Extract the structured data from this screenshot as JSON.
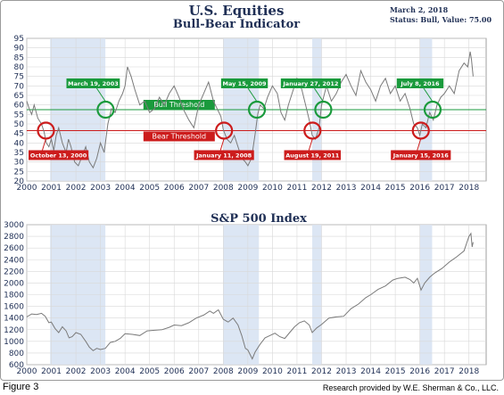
{
  "header": {
    "title": "U.S. Equities",
    "subtitle": "Bull-Bear Indicator",
    "date": "March 2, 2018",
    "status": "Status: Bull, Value: 75.00"
  },
  "footer": {
    "figure": "Figure 3",
    "credit": "Research provided by W.E. Sherman & Co., LLC."
  },
  "colors": {
    "bull": "#1a9a3c",
    "bear": "#cc1c1c",
    "line": "#7a7a7a",
    "shade": "#dce6f4",
    "grid": "#d8d8d8"
  },
  "chart_data": [
    {
      "type": "line",
      "title": "",
      "x_ticks": [
        "2000",
        "2001",
        "2002",
        "2003",
        "2004",
        "2005",
        "2006",
        "2007",
        "2008",
        "2009",
        "2010",
        "2011",
        "2012",
        "2013",
        "2014",
        "2015",
        "2016",
        "2017",
        "2018"
      ],
      "ylim": [
        20,
        95
      ],
      "y_ticks": [
        20,
        25,
        30,
        35,
        40,
        45,
        50,
        55,
        60,
        65,
        70,
        75,
        80,
        85,
        90,
        95
      ],
      "grid": true,
      "bull_threshold": {
        "label": "Bull Threshold",
        "value": 57.5
      },
      "bear_threshold": {
        "label": "Bear Threshold",
        "value": 46.5
      },
      "shaded_periods": [
        [
          2000.95,
          2003.2
        ],
        [
          2008.0,
          2009.45
        ],
        [
          2011.62,
          2012.0
        ],
        [
          2016.0,
          2016.5
        ]
      ],
      "series": [
        {
          "x": [
            2000.0,
            2000.1,
            2000.2,
            2000.3,
            2000.45,
            2000.6,
            2000.7,
            2000.8,
            2000.9,
            2001.0,
            2001.1,
            2001.2,
            2001.3,
            2001.45,
            2001.6,
            2001.7,
            2001.8,
            2001.95,
            2002.1,
            2002.25,
            2002.4,
            2002.55,
            2002.7,
            2002.85,
            2003.0,
            2003.15,
            2003.3,
            2003.45,
            2003.6,
            2003.75,
            2003.9,
            2004.0,
            2004.1,
            2004.25,
            2004.4,
            2004.6,
            2004.8,
            2005.0,
            2005.2,
            2005.4,
            2005.6,
            2005.8,
            2006.0,
            2006.2,
            2006.4,
            2006.6,
            2006.8,
            2007.0,
            2007.2,
            2007.4,
            2007.6,
            2007.75,
            2007.9,
            2008.0,
            2008.15,
            2008.3,
            2008.45,
            2008.6,
            2008.75,
            2008.9,
            2009.0,
            2009.15,
            2009.3,
            2009.4,
            2009.5,
            2009.65,
            2009.8,
            2010.0,
            2010.2,
            2010.35,
            2010.5,
            2010.65,
            2010.8,
            2011.0,
            2011.2,
            2011.35,
            2011.5,
            2011.62,
            2011.75,
            2011.9,
            2012.0,
            2012.2,
            2012.4,
            2012.6,
            2012.8,
            2013.0,
            2013.2,
            2013.4,
            2013.6,
            2013.8,
            2014.0,
            2014.2,
            2014.4,
            2014.6,
            2014.8,
            2015.0,
            2015.2,
            2015.4,
            2015.6,
            2015.75,
            2015.9,
            2016.0,
            2016.1,
            2016.25,
            2016.4,
            2016.55,
            2016.7,
            2016.85,
            2017.0,
            2017.2,
            2017.4,
            2017.6,
            2017.8,
            2017.95,
            2018.05,
            2018.1,
            2018.17
          ],
          "values": [
            62,
            58,
            55,
            60,
            53,
            50,
            46,
            40,
            38,
            42,
            36,
            44,
            48,
            40,
            35,
            42,
            38,
            30,
            28,
            33,
            38,
            30,
            27,
            32,
            40,
            35,
            50,
            58,
            56,
            62,
            66,
            70,
            80,
            75,
            68,
            60,
            62,
            56,
            58,
            64,
            60,
            66,
            70,
            64,
            57,
            52,
            48,
            60,
            66,
            72,
            62,
            58,
            54,
            47,
            42,
            40,
            44,
            38,
            32,
            30,
            28,
            32,
            45,
            55,
            60,
            58,
            64,
            70,
            66,
            56,
            52,
            60,
            66,
            74,
            68,
            60,
            52,
            44,
            42,
            48,
            60,
            70,
            62,
            66,
            72,
            76,
            70,
            65,
            78,
            72,
            68,
            62,
            70,
            74,
            66,
            70,
            62,
            66,
            58,
            50,
            48,
            44,
            50,
            48,
            56,
            52,
            60,
            64,
            66,
            70,
            66,
            78,
            82,
            80,
            88,
            84,
            75
          ],
          "anchor_x": 2000.0
        }
      ],
      "annotations": [
        {
          "label": "October 13, 2000",
          "x": 2000.78,
          "y": 46.5,
          "kind": "bear"
        },
        {
          "label": "March 19, 2003",
          "x": 2003.21,
          "y": 57.5,
          "kind": "bull"
        },
        {
          "label": "January 11, 2008",
          "x": 2008.03,
          "y": 46.5,
          "kind": "bear"
        },
        {
          "label": "May 15, 2009",
          "x": 2009.37,
          "y": 57.5,
          "kind": "bull"
        },
        {
          "label": "August 19, 2011",
          "x": 2011.63,
          "y": 46.5,
          "kind": "bear"
        },
        {
          "label": "January 27, 2012",
          "x": 2012.07,
          "y": 57.5,
          "kind": "bull"
        },
        {
          "label": "January 15, 2016",
          "x": 2016.04,
          "y": 46.5,
          "kind": "bear"
        },
        {
          "label": "July 8, 2016",
          "x": 2016.52,
          "y": 57.5,
          "kind": "bull"
        }
      ]
    },
    {
      "type": "line",
      "title": "S&P 500 Index",
      "x_ticks": [
        "2000",
        "2001",
        "2002",
        "2003",
        "2004",
        "2005",
        "2006",
        "2007",
        "2008",
        "2009",
        "2010",
        "2011",
        "2012",
        "2013",
        "2014",
        "2015",
        "2016",
        "2017",
        "2018"
      ],
      "ylim": [
        600,
        3000
      ],
      "y_ticks": [
        600,
        800,
        1000,
        1200,
        1400,
        1600,
        1800,
        2000,
        2200,
        2400,
        2600,
        2800,
        3000
      ],
      "grid": true,
      "shaded_periods": [
        [
          2000.95,
          2003.2
        ],
        [
          2008.0,
          2009.45
        ],
        [
          2011.62,
          2012.0
        ],
        [
          2016.0,
          2016.5
        ]
      ],
      "series": [
        {
          "x": [
            2000.0,
            2000.2,
            2000.4,
            2000.6,
            2000.75,
            2000.9,
            2001.0,
            2001.15,
            2001.3,
            2001.45,
            2001.6,
            2001.72,
            2001.85,
            2002.0,
            2002.2,
            2002.4,
            2002.55,
            2002.7,
            2002.85,
            2003.0,
            2003.2,
            2003.4,
            2003.6,
            2003.8,
            2004.0,
            2004.3,
            2004.6,
            2004.9,
            2005.2,
            2005.5,
            2005.8,
            2006.0,
            2006.3,
            2006.6,
            2006.9,
            2007.2,
            2007.45,
            2007.6,
            2007.8,
            2008.0,
            2008.2,
            2008.4,
            2008.6,
            2008.75,
            2008.9,
            2009.0,
            2009.18,
            2009.3,
            2009.5,
            2009.7,
            2009.9,
            2010.1,
            2010.3,
            2010.5,
            2010.7,
            2010.9,
            2011.1,
            2011.3,
            2011.5,
            2011.62,
            2011.8,
            2012.0,
            2012.3,
            2012.6,
            2012.9,
            2013.2,
            2013.5,
            2013.8,
            2014.0,
            2014.3,
            2014.6,
            2014.9,
            2015.1,
            2015.4,
            2015.6,
            2015.75,
            2015.9,
            2016.05,
            2016.2,
            2016.4,
            2016.6,
            2016.9,
            2017.2,
            2017.5,
            2017.8,
            2018.0,
            2018.08,
            2018.13,
            2018.17
          ],
          "values": [
            1420,
            1470,
            1460,
            1480,
            1430,
            1320,
            1330,
            1220,
            1150,
            1250,
            1180,
            1060,
            1080,
            1150,
            1120,
            1000,
            900,
            840,
            880,
            860,
            880,
            980,
            1000,
            1050,
            1130,
            1120,
            1100,
            1180,
            1190,
            1200,
            1240,
            1280,
            1270,
            1320,
            1400,
            1450,
            1520,
            1480,
            1540,
            1380,
            1330,
            1400,
            1280,
            1100,
            880,
            850,
            700,
            820,
            950,
            1060,
            1100,
            1140,
            1080,
            1050,
            1150,
            1250,
            1320,
            1350,
            1280,
            1150,
            1230,
            1290,
            1400,
            1420,
            1430,
            1560,
            1640,
            1750,
            1800,
            1890,
            1950,
            2050,
            2080,
            2100,
            2060,
            2000,
            2080,
            1880,
            2000,
            2100,
            2170,
            2250,
            2360,
            2450,
            2550,
            2800,
            2850,
            2620,
            2700
          ]
        }
      ]
    }
  ]
}
